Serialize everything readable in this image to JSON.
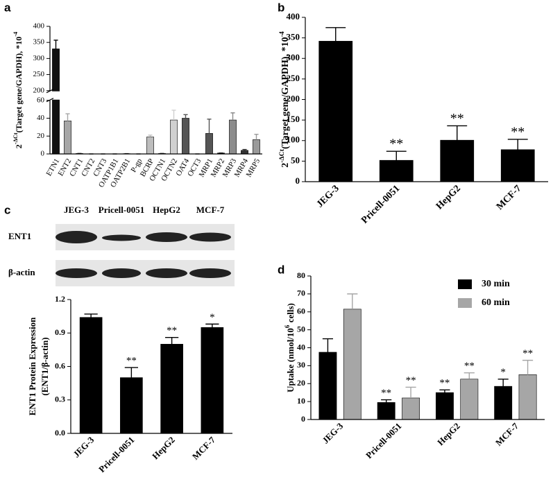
{
  "chart_data": [
    {
      "panel": "a",
      "type": "bar",
      "ylabel": [
        [
          {
            "text": "2"
          },
          {
            "text": "-ΔCt",
            "sup": true
          },
          {
            "text": "(Target gene/GAPDH), *10"
          },
          {
            "text": "-4",
            "sup": true
          }
        ]
      ],
      "categories": [
        "ETN1",
        "ENT2",
        "CNT1",
        "CNT2",
        "CNT3",
        "OATP1B1",
        "OATP2B1",
        "P-gp",
        "BCRP",
        "OCTN1",
        "OCTN2",
        "OAT4",
        "OCT3",
        "MRP1",
        "MRP2",
        "MRP3",
        "MRP4",
        "MRP5"
      ],
      "values": [
        330,
        37,
        0.5,
        0,
        0,
        0,
        0.3,
        0,
        19,
        0.5,
        38,
        40,
        0,
        23,
        1,
        38,
        4,
        16
      ],
      "errors": [
        27,
        8,
        0,
        0,
        0,
        0,
        0,
        0,
        2,
        0,
        11,
        4,
        0,
        16,
        0,
        8,
        1,
        6
      ],
      "colors": [
        "#111111",
        "#a6a6a6",
        "#111111",
        "#111111",
        "#111111",
        "#111111",
        "#111111",
        "#111111",
        "#bdbdbd",
        "#111111",
        "#d0d0d0",
        "#555555",
        "#111111",
        "#555555",
        "#111111",
        "#8c8c8c",
        "#333333",
        "#9a9a9a"
      ],
      "ylim": [
        0,
        400
      ],
      "axis_break": [
        60,
        200
      ],
      "yticks": [
        0,
        20,
        40,
        60,
        200,
        250,
        300,
        350,
        400
      ]
    },
    {
      "panel": "b",
      "type": "bar",
      "ylabel": [
        [
          {
            "text": "2"
          },
          {
            "text": "-ΔCt",
            "sup": true
          },
          {
            "text": "(Target gene/GAPDH), *10"
          },
          {
            "text": "-4",
            "sup": true
          }
        ]
      ],
      "categories": [
        "JEG-3",
        "Pricell-0051",
        "HepG2",
        "MCF-7"
      ],
      "values": [
        342,
        52,
        101,
        78
      ],
      "errors": [
        33,
        22,
        35,
        25
      ],
      "annotations": [
        null,
        "**",
        "**",
        "**"
      ],
      "color": "#000000",
      "ylim": [
        0,
        400
      ],
      "yticks": [
        0,
        50,
        100,
        150,
        200,
        250,
        300,
        350,
        400
      ]
    },
    {
      "panel": "c",
      "type": "bar",
      "blot": {
        "lanes": [
          "JEG-3",
          "Pricell-0051",
          "HepG2",
          "MCF-7"
        ],
        "rows": [
          "ENT1",
          "β-actin"
        ]
      },
      "ylabel": [
        [
          {
            "text": "ENT1 Protein Expression"
          }
        ],
        [
          {
            "text": "(ENT1/β-actin)"
          }
        ]
      ],
      "categories": [
        "JEG-3",
        "Pricell-0051",
        "HepG2",
        "MCF-7"
      ],
      "values": [
        1.04,
        0.5,
        0.8,
        0.95
      ],
      "errors": [
        0.03,
        0.09,
        0.06,
        0.03
      ],
      "annotations": [
        null,
        "**",
        "**",
        "*"
      ],
      "color": "#000000",
      "ylim": [
        0,
        1.2
      ],
      "yticks": [
        {
          "value": 0,
          "label": "0.0"
        },
        0.3,
        0.6,
        0.9,
        1.2
      ]
    },
    {
      "panel": "d",
      "type": "grouped_bar",
      "ylabel": [
        [
          {
            "text": "Uptake (nmol/10"
          },
          {
            "text": "6",
            "sup": true
          },
          {
            "text": " cells)"
          }
        ]
      ],
      "categories": [
        "JEG-3",
        "Pricell-0051",
        "HepG2",
        "MCF-7"
      ],
      "series": [
        {
          "name": "30 min",
          "color": "#000000",
          "values": [
            37.5,
            9.5,
            15,
            18.5
          ],
          "errors": [
            7.5,
            1.5,
            1.5,
            4
          ],
          "annotations": [
            null,
            "**",
            "**",
            "*"
          ]
        },
        {
          "name": "60 min",
          "color": "#a6a6a6",
          "values": [
            61.5,
            12,
            22.5,
            25
          ],
          "errors": [
            8.5,
            6,
            3.5,
            8
          ],
          "annotations": [
            null,
            "**",
            "**",
            "**"
          ]
        }
      ],
      "ylim": [
        0,
        80
      ],
      "yticks": [
        0,
        10,
        20,
        30,
        40,
        50,
        60,
        70,
        80
      ],
      "legend": "top-right"
    }
  ]
}
